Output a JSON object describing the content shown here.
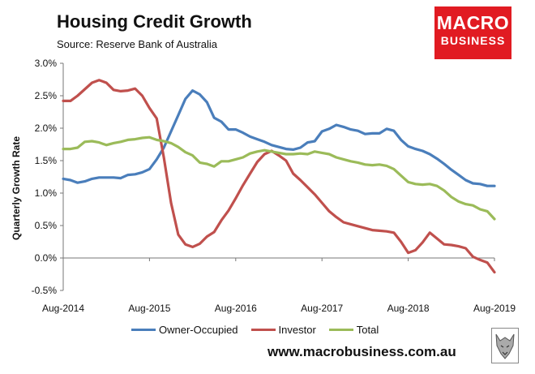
{
  "header": {
    "title": "Housing Credit Growth",
    "subtitle": "Source: Reserve Bank of Australia"
  },
  "logo": {
    "line1": "MACRO",
    "line2": "BUSINESS"
  },
  "footer": {
    "website": "www.macrobusiness.com.au"
  },
  "colors": {
    "owner": "#4a7ebb",
    "investor": "#c0504d",
    "total": "#9bbb59"
  },
  "chart_data": {
    "type": "line",
    "title": "Housing Credit Growth",
    "xlabel": "",
    "ylabel": "Quarterly Growth Rate",
    "ylim": [
      -0.5,
      3.0
    ],
    "yticks": [
      -0.5,
      0.0,
      0.5,
      1.0,
      1.5,
      2.0,
      2.5,
      3.0
    ],
    "ytick_labels": [
      "-0.5%",
      "0.0%",
      "0.5%",
      "1.0%",
      "1.5%",
      "2.0%",
      "2.5%",
      "3.0%"
    ],
    "xtick_labels": [
      "Aug-2014",
      "Aug-2015",
      "Aug-2016",
      "Aug-2017",
      "Aug-2018",
      "Aug-2019"
    ],
    "x_start": "Aug-2014",
    "x_end": "Aug-2019",
    "n_points": 61,
    "grid": false,
    "legend": "bottom",
    "series": [
      {
        "name": "Owner-Occupied",
        "values": [
          1.22,
          1.2,
          1.16,
          1.18,
          1.22,
          1.24,
          1.24,
          1.24,
          1.23,
          1.28,
          1.29,
          1.32,
          1.37,
          1.52,
          1.7,
          1.95,
          2.2,
          2.45,
          2.58,
          2.52,
          2.4,
          2.16,
          2.1,
          1.98,
          1.98,
          1.93,
          1.87,
          1.83,
          1.79,
          1.74,
          1.71,
          1.68,
          1.67,
          1.7,
          1.78,
          1.8,
          1.95,
          1.99,
          2.05,
          2.02,
          1.98,
          1.96,
          1.91,
          1.92,
          1.92,
          1.99,
          1.96,
          1.82,
          1.72,
          1.68,
          1.65,
          1.6,
          1.53,
          1.45,
          1.36,
          1.28,
          1.2,
          1.15,
          1.14,
          1.11,
          1.11
        ]
      },
      {
        "name": "Investor",
        "values": [
          2.42,
          2.42,
          2.5,
          2.6,
          2.7,
          2.74,
          2.7,
          2.59,
          2.57,
          2.58,
          2.61,
          2.5,
          2.31,
          2.15,
          1.55,
          0.85,
          0.36,
          0.21,
          0.17,
          0.22,
          0.33,
          0.4,
          0.58,
          0.73,
          0.92,
          1.12,
          1.3,
          1.48,
          1.6,
          1.65,
          1.58,
          1.5,
          1.3,
          1.2,
          1.09,
          0.98,
          0.85,
          0.72,
          0.63,
          0.55,
          0.52,
          0.49,
          0.46,
          0.43,
          0.42,
          0.41,
          0.39,
          0.25,
          0.08,
          0.12,
          0.24,
          0.39,
          0.3,
          0.21,
          0.2,
          0.18,
          0.15,
          0.02,
          -0.03,
          -0.07,
          -0.22
        ]
      },
      {
        "name": "Total",
        "values": [
          1.68,
          1.68,
          1.7,
          1.79,
          1.8,
          1.78,
          1.74,
          1.77,
          1.79,
          1.82,
          1.83,
          1.85,
          1.86,
          1.82,
          1.8,
          1.77,
          1.71,
          1.63,
          1.58,
          1.47,
          1.45,
          1.41,
          1.49,
          1.49,
          1.52,
          1.55,
          1.61,
          1.64,
          1.66,
          1.64,
          1.62,
          1.6,
          1.6,
          1.61,
          1.6,
          1.64,
          1.62,
          1.6,
          1.55,
          1.52,
          1.49,
          1.47,
          1.44,
          1.43,
          1.44,
          1.42,
          1.37,
          1.27,
          1.17,
          1.14,
          1.13,
          1.14,
          1.11,
          1.04,
          0.94,
          0.87,
          0.83,
          0.81,
          0.75,
          0.72,
          0.6
        ]
      }
    ]
  }
}
